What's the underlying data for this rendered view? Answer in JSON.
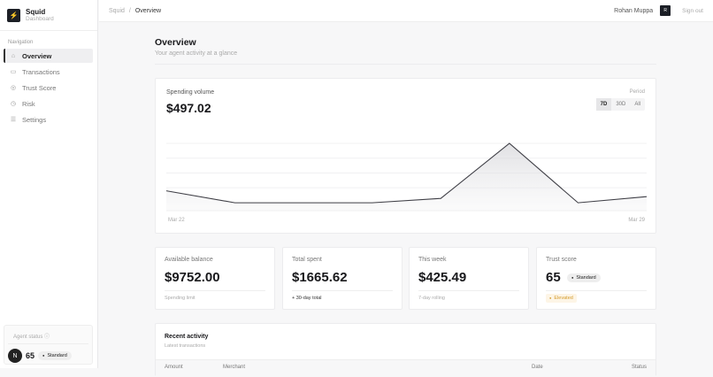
{
  "sidebar": {
    "brand": "Squid",
    "brand_sub": "Dashboard",
    "nav_label": "Navigation",
    "items": [
      {
        "label": "Overview",
        "icon": "home-icon"
      },
      {
        "label": "Transactions",
        "icon": "card-icon"
      },
      {
        "label": "Trust Score",
        "icon": "badge-icon"
      },
      {
        "label": "Risk",
        "icon": "alert-icon"
      },
      {
        "label": "Settings",
        "icon": "sliders-icon"
      }
    ],
    "agent": {
      "label": "Agent status",
      "avatar": "N",
      "score": "65",
      "tier": "Standard"
    }
  },
  "header": {
    "crumb_root": "Squid",
    "crumb_sep": "/",
    "crumb_current": "Overview",
    "user": "Rohan Muppa",
    "user_initial": "R",
    "signout": "Sign out"
  },
  "page": {
    "title": "Overview",
    "subtitle": "Your agent activity at a glance"
  },
  "chart_card": {
    "label": "Spending volume",
    "value": "$497.02",
    "period_label": "Period",
    "periods": [
      "7D",
      "30D",
      "All"
    ],
    "active_period": "7D"
  },
  "chart_data": {
    "type": "area",
    "x": [
      "Mar 22",
      "Mar 23",
      "Mar 24",
      "Mar 25",
      "Mar 26",
      "Mar 27",
      "Mar 28",
      "Mar 29"
    ],
    "values": [
      68,
      27,
      27,
      27,
      42,
      231,
      27,
      48
    ],
    "x_tick_labels": [
      "Mar 22",
      "Mar 29"
    ],
    "grid": true,
    "color": "#3f3f46"
  },
  "stats": [
    {
      "label": "Available balance",
      "value": "$9752.00",
      "footer": "Spending limit"
    },
    {
      "label": "Total spent",
      "value": "$1665.62",
      "footer": "+ 30-day total"
    },
    {
      "label": "This week",
      "value": "$425.49",
      "footer": "7-day rolling"
    },
    {
      "label": "Trust score",
      "value": "65",
      "badge": "Standard",
      "footer": "Elevated",
      "footer_color": "#d49a2a"
    }
  ],
  "recent": {
    "title": "Recent activity",
    "subtitle": "Latest transactions",
    "columns": [
      "Amount",
      "Merchant",
      "Date",
      "Status"
    ]
  }
}
